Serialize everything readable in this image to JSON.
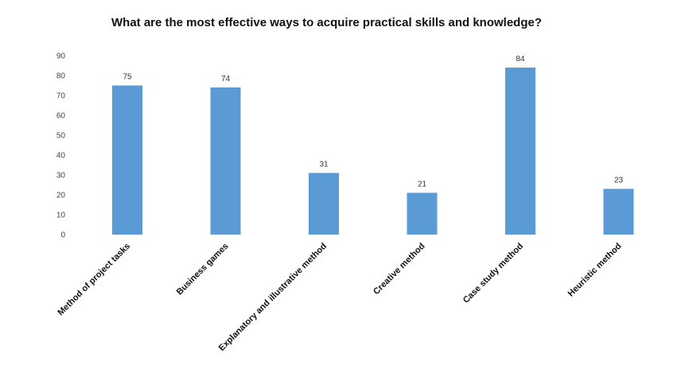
{
  "chart_data": {
    "type": "bar",
    "title": "What are the most effective ways to acquire practical skills and knowledge?",
    "categories": [
      "Method of project tasks",
      "Business games",
      "Explanatory and illustrative method",
      "Creative method",
      "Case study method",
      "Heuristic method"
    ],
    "values": [
      75,
      74,
      31,
      21,
      84,
      23
    ],
    "data_labels": [
      "75",
      "74",
      "31",
      "21",
      "84",
      "23"
    ],
    "yticks": [
      0,
      10,
      20,
      30,
      40,
      50,
      60,
      70,
      80,
      90
    ],
    "ylim": [
      0,
      90
    ],
    "grid": false,
    "legend": "none",
    "bar_color": "#5b9bd5"
  }
}
